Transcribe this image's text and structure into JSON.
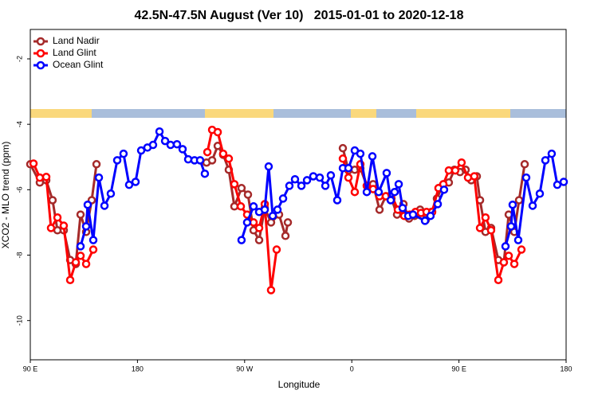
{
  "chart_data": {
    "type": "line",
    "title": "42.5N-47.5N August (Ver 10)   2015-01-01 to 2020-12-18",
    "x_label": "Longitude",
    "y_label": "XCO2 - MLO trend (ppm)",
    "xlim": [
      90,
      540
    ],
    "ylim": [
      -11.2,
      -1.1
    ],
    "xticks": [
      {
        "value": 90,
        "label": "90 E"
      },
      180,
      {
        "value": 270,
        "label": "90 W"
      },
      {
        "value": 360,
        "label": "0"
      },
      {
        "value": 450,
        "label": "90 E"
      },
      {
        "value": 540,
        "label": "180"
      }
    ],
    "yticks": [
      -2,
      -4,
      -6,
      -8,
      -10
    ],
    "legend": "top-left",
    "series": [
      {
        "name": "Land Nadir",
        "color": "#a52a2a",
        "x": [
          90,
          98.0,
          103.4,
          108.7,
          112.8,
          118.1,
          123.5,
          128.2,
          132.2,
          136.9,
          141.6,
          145.6,
          null,
          238.0,
          242.7,
          247.4,
          252.0,
          256.7,
          261.4,
          267.4,
          272.8,
          277.5,
          282.2,
          286.9,
          292.2,
          298.9,
          304.3,
          306.3,
          null,
          352.5,
          357.2,
          362.5,
          367.2,
          372.6,
          377.9,
          383.3,
          388.6,
          393.3,
          398.0,
          403.4,
          408.1,
          412.7,
          417.4,
          422.1,
          426.8,
          431.5,
          436.2,
          441.5,
          446.2,
          450.9,
          455.6,
          460.3,
          465.0,
          467.7,
          472.3,
          477.0,
          483.1,
          487.7,
          491.8,
          496.5,
          500.5,
          505.2
        ],
        "values": [
          -5.22,
          -5.78,
          -5.71,
          -6.32,
          -7.24,
          -7.24,
          -8.15,
          -8.27,
          -6.76,
          -7.29,
          -6.32,
          -5.22,
          null,
          -5.17,
          -5.1,
          -4.66,
          -4.93,
          -5.39,
          -6.51,
          -5.95,
          -6.15,
          -7.24,
          -7.54,
          -6.56,
          -7.0,
          -6.76,
          -7.41,
          -7.0,
          null,
          -4.73,
          -5.41,
          -5.39,
          -5.34,
          -5.88,
          -5.83,
          -6.61,
          -6.2,
          -6.27,
          -6.76,
          -6.44,
          -6.88,
          -6.8,
          -6.61,
          -6.93,
          -6.68,
          -6.27,
          -5.88,
          -5.78,
          -5.39,
          -5.46,
          -5.39,
          -5.71,
          -5.59,
          -6.32,
          -7.29,
          -7.17,
          -8.15,
          -8.22,
          -6.76,
          -7.29,
          -6.32,
          -5.22
        ]
      },
      {
        "name": "Land Glint",
        "color": "#ff0000",
        "x": [
          92.7,
          98.0,
          103.4,
          107.4,
          112.8,
          118.1,
          123.5,
          128.2,
          132.2,
          136.9,
          142.9,
          null,
          238.7,
          242.7,
          247.4,
          252.0,
          256.7,
          261.4,
          266.8,
          272.1,
          277.5,
          282.2,
          286.9,
          292.2,
          296.9,
          null,
          352.5,
          357.2,
          362.5,
          367.2,
          372.6,
          377.9,
          383.3,
          388.6,
          393.3,
          398.7,
          404.0,
          408.7,
          413.4,
          418.1,
          422.8,
          427.5,
          432.8,
          436.9,
          441.5,
          446.9,
          452.2,
          457.6,
          462.9,
          467.7,
          472.3,
          477.0,
          483.1,
          487.7,
          491.8,
          496.5,
          502.5
        ],
        "values": [
          -5.2,
          -5.63,
          -5.61,
          -7.17,
          -6.85,
          -7.1,
          -8.76,
          -8.22,
          -8.02,
          -8.27,
          -7.83,
          null,
          -4.85,
          -4.17,
          -4.24,
          -4.9,
          -5.05,
          -5.83,
          -6.51,
          -6.76,
          -7.0,
          -7.17,
          -6.44,
          -9.07,
          -7.83,
          null,
          -5.05,
          -5.63,
          -6.07,
          -5.22,
          -5.88,
          -5.98,
          -6.2,
          -6.2,
          -6.15,
          -6.61,
          -6.8,
          -6.76,
          -6.68,
          -6.71,
          -6.68,
          -6.68,
          -5.95,
          -5.83,
          -5.41,
          -5.41,
          -5.17,
          -5.63,
          -5.59,
          -7.17,
          -6.85,
          -7.24,
          -8.76,
          -8.22,
          -8.02,
          -8.27,
          -7.83
        ]
      },
      {
        "name": "Ocean Glint",
        "color": "#0000ff",
        "x": [
          132.2,
          136.9,
          138.2,
          142.9,
          147.6,
          152.3,
          157.6,
          163.0,
          168.3,
          173.0,
          178.4,
          183.1,
          188.4,
          193.1,
          198.5,
          203.2,
          207.8,
          213.2,
          217.9,
          222.6,
          227.9,
          232.6,
          236.6,
          null,
          267.4,
          272.1,
          277.5,
          282.2,
          286.9,
          290.2,
          293.6,
          297.6,
          302.3,
          307.6,
          312.3,
          317.7,
          322.4,
          327.7,
          333.1,
          337.8,
          342.4,
          347.8,
          352.5,
          357.2,
          362.5,
          367.2,
          372.6,
          377.3,
          382.6,
          389.3,
          392.7,
          396.0,
          399.4,
          402.7,
          407.4,
          411.4,
          421.5,
          426.1,
          432.2,
          437.5,
          null,
          489.1,
          493.8,
          495.1,
          499.8,
          506.5,
          511.9,
          517.9,
          522.6,
          527.9,
          532.6,
          538.0
        ],
        "values": [
          -7.73,
          -7.12,
          -6.46,
          -7.54,
          -5.63,
          -6.49,
          -6.12,
          -5.1,
          -4.9,
          -5.85,
          -5.76,
          -4.8,
          -4.71,
          -4.63,
          -4.22,
          -4.51,
          -4.63,
          -4.61,
          -4.76,
          -5.07,
          -5.1,
          -5.1,
          -5.51,
          null,
          -7.54,
          -7.0,
          -6.51,
          -6.68,
          -6.61,
          -5.29,
          -6.8,
          -6.61,
          -6.27,
          -5.88,
          -5.68,
          -5.88,
          -5.71,
          -5.59,
          -5.63,
          -5.88,
          -5.56,
          -6.32,
          -5.34,
          -5.34,
          -4.8,
          -4.9,
          -6.07,
          -4.98,
          -6.07,
          -5.49,
          -6.32,
          -6.07,
          -5.83,
          -6.56,
          -6.8,
          -6.76,
          -6.95,
          -6.8,
          -6.44,
          -6.0,
          null,
          -7.73,
          -7.12,
          -6.46,
          -7.54,
          -5.63,
          -6.49,
          -6.12,
          -5.1,
          -4.9,
          -5.85,
          -5.76
        ]
      }
    ]
  }
}
